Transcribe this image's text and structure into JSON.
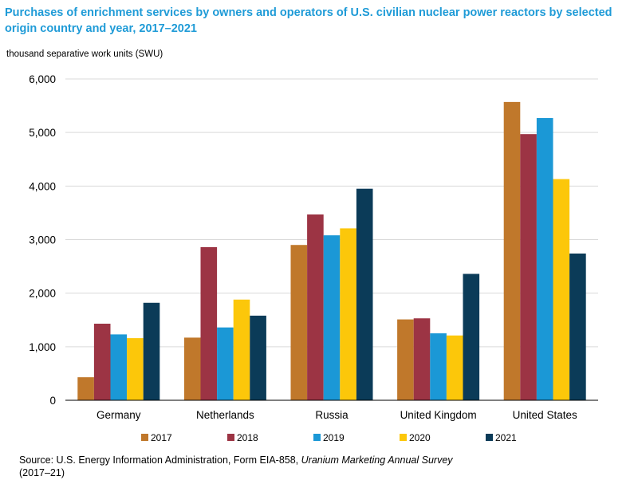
{
  "title": "Purchases of enrichment services by owners and operators of U.S. civilian nuclear power reactors by selected origin country and year, 2017–2021",
  "units_label": "thousand separative work units (SWU)",
  "source": {
    "prefix": "Source: U.S. Energy Information Administration, Form EIA-858, ",
    "italic": "Uranium Marketing Annual Survey",
    "suffix": "(2017–21)"
  },
  "chart_data": {
    "type": "bar",
    "categories": [
      "Germany",
      "Netherlands",
      "Russia",
      "United Kingdom",
      "United States"
    ],
    "series": [
      {
        "name": "2017",
        "color": "#c0782b",
        "values": [
          430,
          1170,
          2900,
          1510,
          5570
        ]
      },
      {
        "name": "2018",
        "color": "#9c3444",
        "values": [
          1430,
          2860,
          3470,
          1530,
          4970
        ]
      },
      {
        "name": "2019",
        "color": "#1b98d6",
        "values": [
          1230,
          1360,
          3080,
          1250,
          5270
        ]
      },
      {
        "name": "2020",
        "color": "#fcc70a",
        "values": [
          1160,
          1880,
          3210,
          1210,
          4130
        ]
      },
      {
        "name": "2021",
        "color": "#0b3b58",
        "values": [
          1820,
          1580,
          3950,
          2360,
          2740
        ]
      }
    ],
    "yticks": [
      "0",
      "1,000",
      "2,000",
      "3,000",
      "4,000",
      "5,000",
      "6,000"
    ],
    "ylim": [
      0,
      6000
    ],
    "grid": true,
    "legend_position": "bottom"
  }
}
